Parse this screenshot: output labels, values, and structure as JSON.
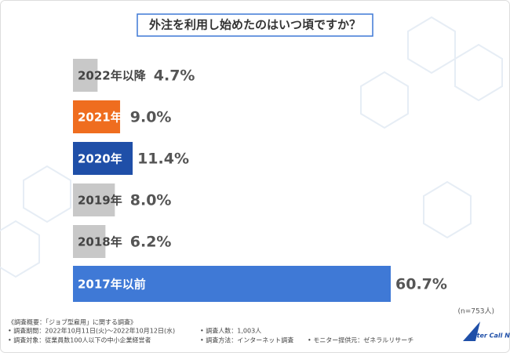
{
  "chart_data": {
    "type": "bar",
    "orientation": "horizontal",
    "title": "外注を利用し始めたのはいつ頃ですか？",
    "categories": [
      "2022年以降",
      "2021年",
      "2020年",
      "2019年",
      "2018年",
      "2017年以前"
    ],
    "values": [
      4.7,
      9.0,
      11.4,
      8.0,
      6.2,
      60.7
    ],
    "value_labels": [
      "4.7%",
      "9.0%",
      "11.4%",
      "8.0%",
      "6.2%",
      "60.7%"
    ],
    "colors": [
      "#c8c8c8",
      "#ef6d1f",
      "#1f4fa8",
      "#c8c8c8",
      "#c8c8c8",
      "#3f79d6"
    ],
    "note": "(n=753人)"
  },
  "footer": {
    "heading": "《調査概要：「ジョブ型雇用」に関する調査》",
    "items": [
      "• 調査期間：2022年10月11日(火)～2022年10月12日(水)",
      "• 調査対象：従業員数100人以下の中小企業経営者",
      "• 調査人数：1,003人",
      "• 調査方法：インターネット調査",
      "• モニター提供元：ゼネラルリサーチ"
    ]
  },
  "logo": {
    "name": "After Call Navi"
  }
}
